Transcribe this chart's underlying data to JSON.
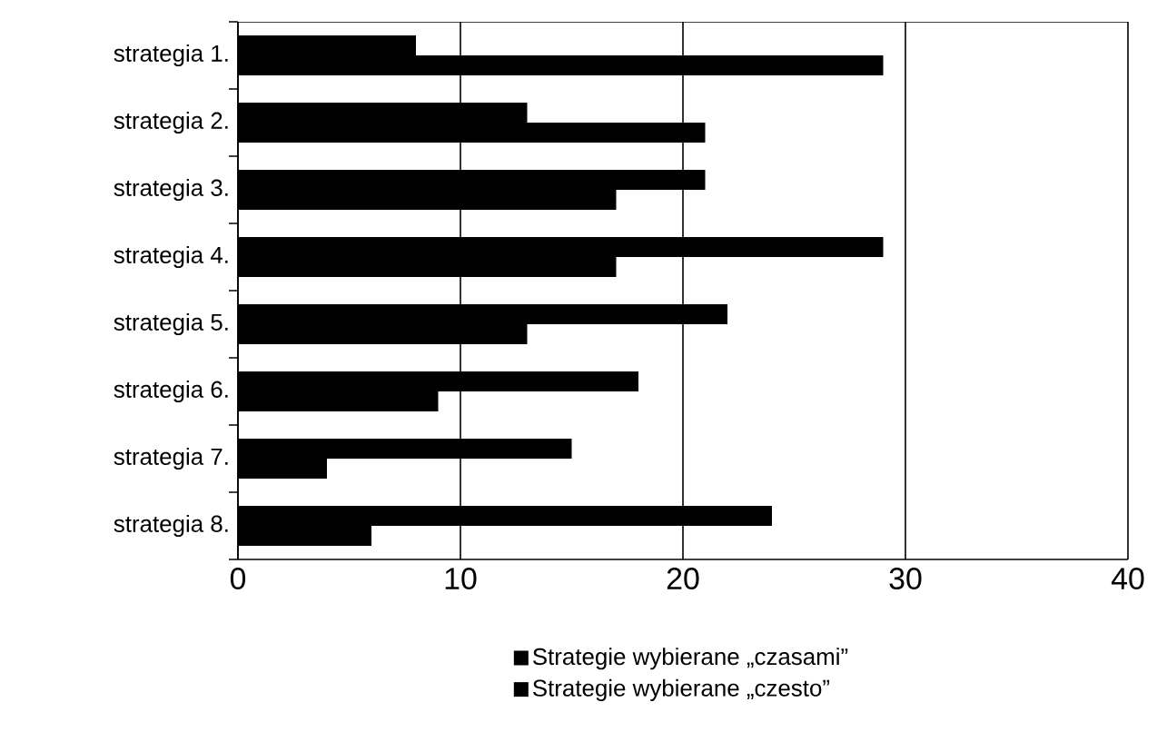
{
  "chart_data": {
    "type": "bar",
    "orientation": "horizontal",
    "categories": [
      "strategia 1.",
      "strategia 2.",
      "strategia 3.",
      "strategia 4.",
      "strategia 5.",
      "strategia 6.",
      "strategia 7.",
      "strategia 8."
    ],
    "series": [
      {
        "name": "Strategie wybierane „czasami”",
        "color": "#000000",
        "values": [
          8,
          13,
          21,
          29,
          22,
          18,
          15,
          24
        ]
      },
      {
        "name": "Strategie wybierane „czesto”",
        "color": "#000000",
        "values": [
          29,
          21,
          17,
          17,
          13,
          9,
          4,
          6
        ]
      }
    ],
    "xlim": [
      0,
      40
    ],
    "xticks": [
      0,
      10,
      20,
      30,
      40
    ],
    "grid": "x",
    "legend": "bottom"
  }
}
